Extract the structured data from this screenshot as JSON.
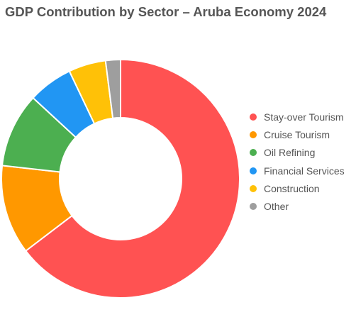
{
  "chart_data": {
    "type": "pie",
    "title": "GDP Contribution by Sector – Aruba Economy 2024",
    "categories": [
      "Stay-over Tourism",
      "Cruise Tourism",
      "Oil Refining",
      "Financial Services",
      "Construction",
      "Other"
    ],
    "values": [
      64,
      12,
      10,
      6,
      5,
      2
    ],
    "colors": [
      "#ff5252",
      "#ff9800",
      "#4caf50",
      "#2196f3",
      "#ffc107",
      "#9e9e9e"
    ],
    "donut": true,
    "legend_position": "right"
  }
}
